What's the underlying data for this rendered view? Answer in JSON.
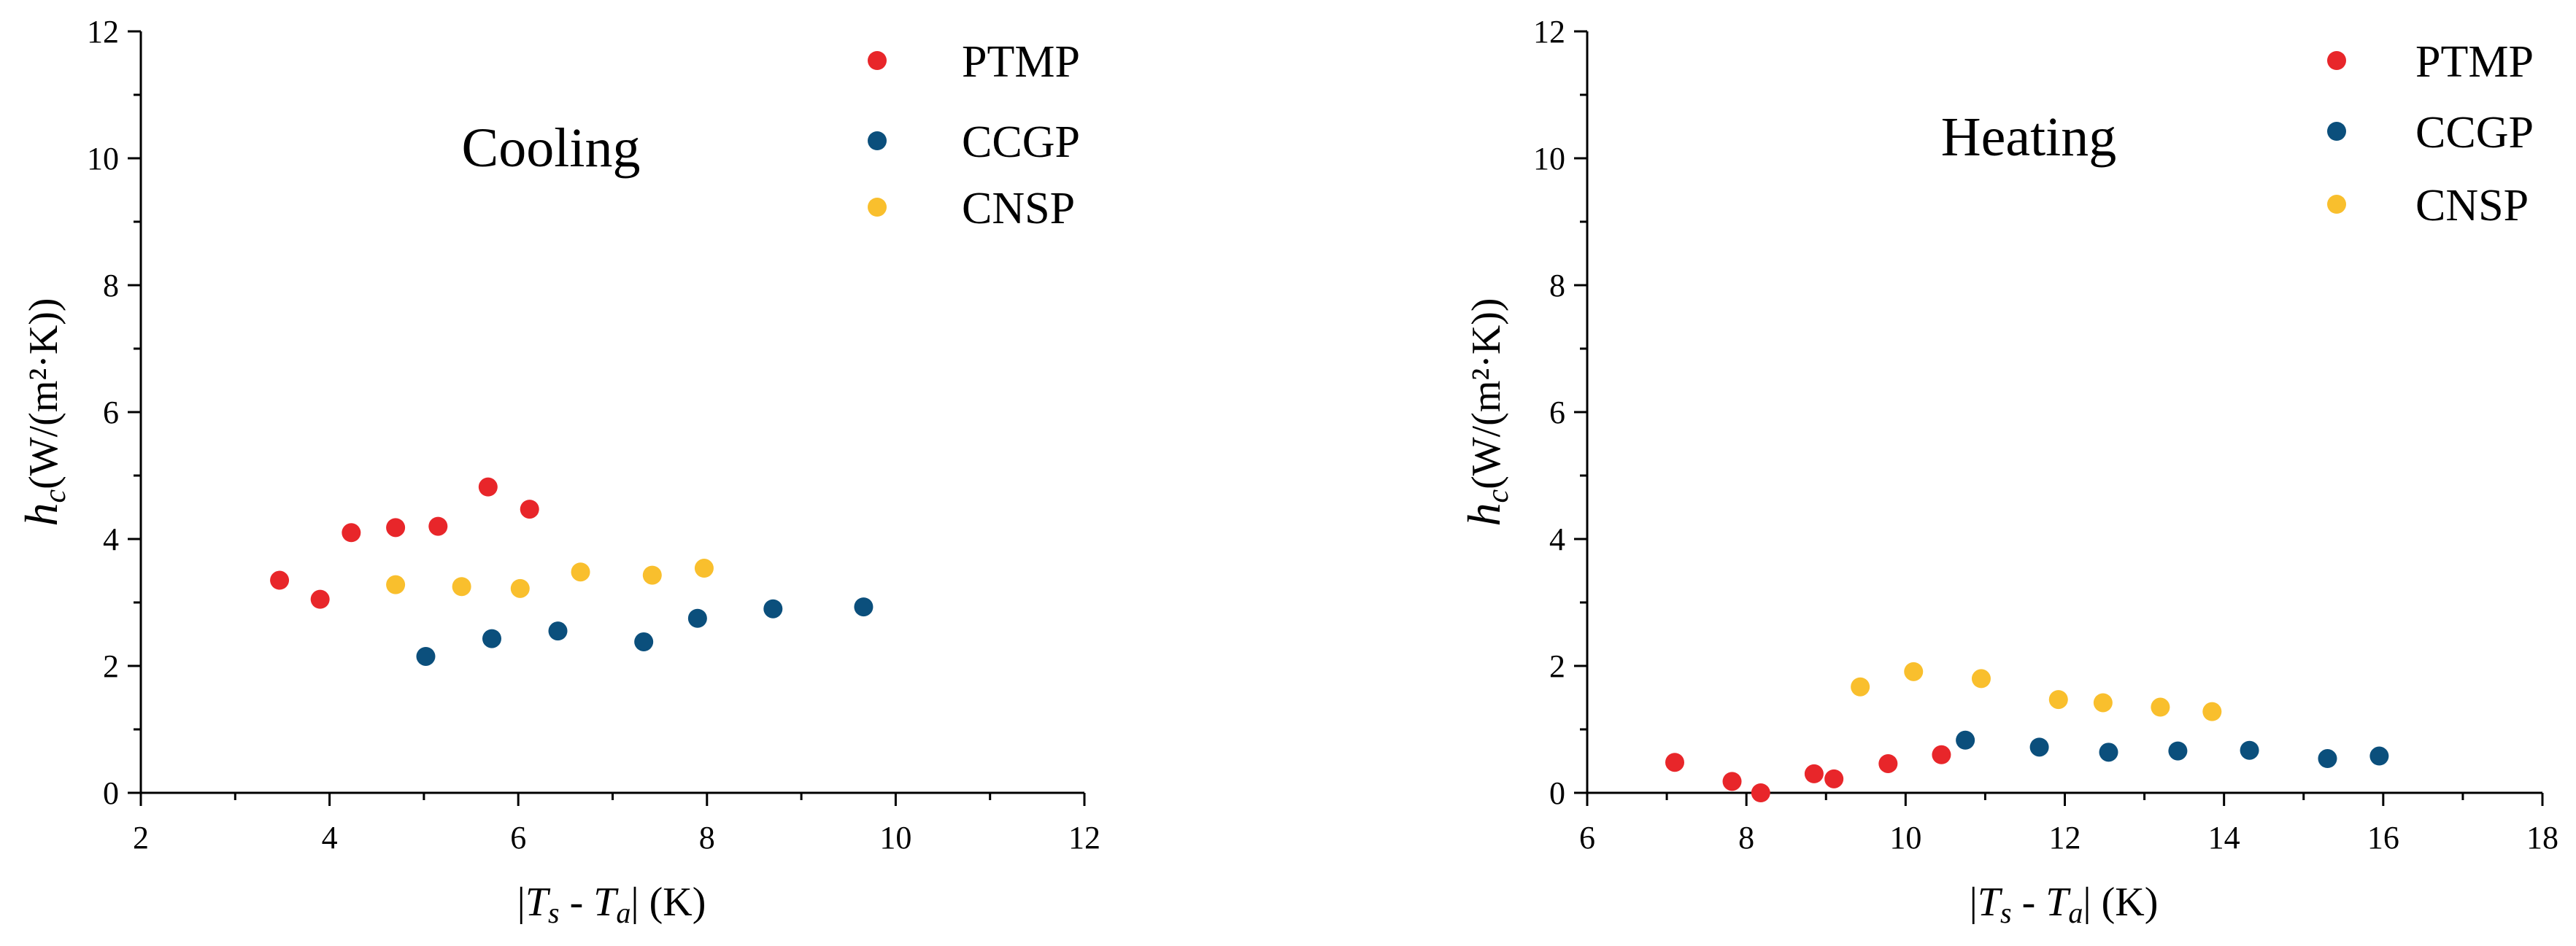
{
  "chart_data": [
    {
      "type": "scatter",
      "title": "Cooling",
      "xlabel_parts": [
        "|",
        "T",
        "s",
        " - ",
        "T",
        "a",
        "| (K)"
      ],
      "ylabel_parts": [
        "h",
        "c",
        "(W/(m²·K))"
      ],
      "xlim": [
        2,
        12
      ],
      "ylim": [
        0,
        12
      ],
      "xticks": [
        2,
        4,
        6,
        8,
        10,
        12
      ],
      "yticks": [
        0,
        2,
        4,
        6,
        8,
        10,
        12
      ],
      "legend_position": "top-right",
      "series": [
        {
          "name": "PTMP",
          "color": "#e8262a",
          "points": [
            [
              3.47,
              3.35
            ],
            [
              3.9,
              3.05
            ],
            [
              4.23,
              4.1
            ],
            [
              4.7,
              4.18
            ],
            [
              5.15,
              4.2
            ],
            [
              5.68,
              4.82
            ],
            [
              6.12,
              4.47
            ]
          ]
        },
        {
          "name": "CCGP",
          "color": "#0b4f7c",
          "points": [
            [
              5.02,
              2.15
            ],
            [
              5.72,
              2.43
            ],
            [
              6.42,
              2.55
            ],
            [
              7.33,
              2.38
            ],
            [
              7.9,
              2.75
            ],
            [
              8.7,
              2.9
            ],
            [
              9.66,
              2.93
            ]
          ]
        },
        {
          "name": "CNSP",
          "color": "#f9bf2d",
          "points": [
            [
              4.7,
              3.28
            ],
            [
              5.4,
              3.25
            ],
            [
              6.02,
              3.22
            ],
            [
              6.66,
              3.48
            ],
            [
              7.42,
              3.43
            ],
            [
              7.97,
              3.54
            ]
          ]
        }
      ]
    },
    {
      "type": "scatter",
      "title": "Heating",
      "xlabel_parts": [
        "|",
        "T",
        "s",
        " - ",
        "T",
        "a",
        "| (K)"
      ],
      "ylabel_parts": [
        "h",
        "c",
        "(W/(m²·K))"
      ],
      "xlim": [
        6,
        18
      ],
      "ylim": [
        0,
        12
      ],
      "xticks": [
        6,
        8,
        10,
        12,
        14,
        16,
        18
      ],
      "yticks": [
        0,
        2,
        4,
        6,
        8,
        10,
        12
      ],
      "legend_position": "top-right",
      "series": [
        {
          "name": "PTMP",
          "color": "#e8262a",
          "points": [
            [
              7.1,
              0.48
            ],
            [
              7.82,
              0.18
            ],
            [
              8.18,
              0.0
            ],
            [
              8.85,
              0.3
            ],
            [
              9.1,
              0.22
            ],
            [
              9.78,
              0.46
            ],
            [
              10.45,
              0.6
            ]
          ]
        },
        {
          "name": "CCGP",
          "color": "#0b4f7c",
          "points": [
            [
              10.75,
              0.83
            ],
            [
              11.68,
              0.72
            ],
            [
              12.55,
              0.64
            ],
            [
              13.42,
              0.66
            ],
            [
              14.32,
              0.67
            ],
            [
              15.3,
              0.54
            ],
            [
              15.95,
              0.58
            ]
          ]
        },
        {
          "name": "CNSP",
          "color": "#f9bf2d",
          "points": [
            [
              9.43,
              1.67
            ],
            [
              10.1,
              1.91
            ],
            [
              10.95,
              1.8
            ],
            [
              11.92,
              1.47
            ],
            [
              12.48,
              1.42
            ],
            [
              13.2,
              1.35
            ],
            [
              13.85,
              1.28
            ]
          ]
        }
      ]
    }
  ]
}
